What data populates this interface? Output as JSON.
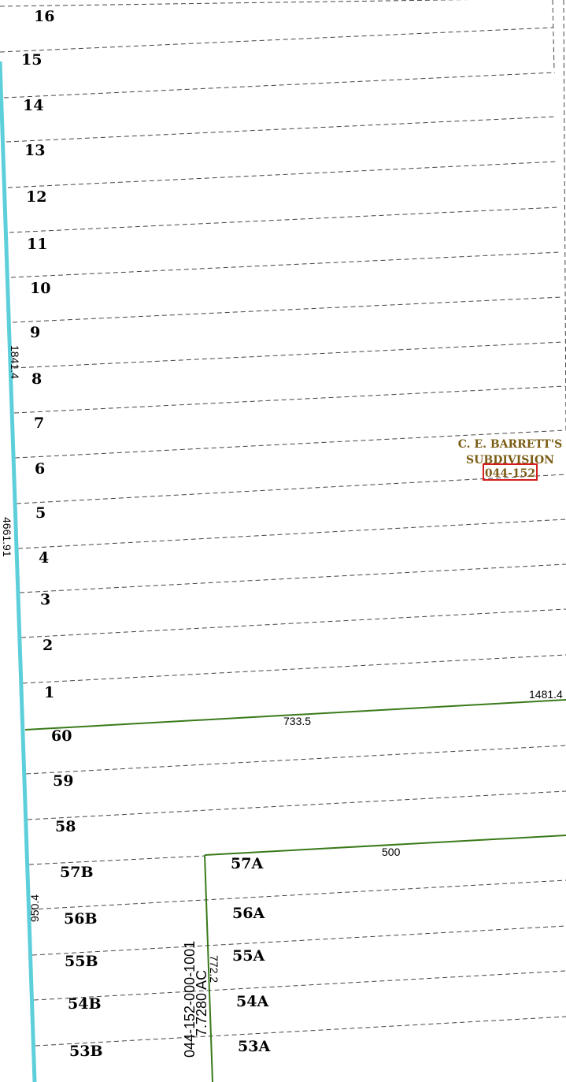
{
  "colors": {
    "road": "#5dcfdb",
    "parcel_line": "#3a7a1a",
    "lot_line": "#444444",
    "subdivision_label": "#7a5c14",
    "subdivision_box": "#d41f1f"
  },
  "subdivision": {
    "name_line1": "C. E. BARRETT'S",
    "name_line2": "SUBDIVISION",
    "code": "044-152"
  },
  "dimensions": {
    "upper_west": "1841.4",
    "road_length": "4661.91",
    "boundary_east": "1481.4",
    "boundary_middle": "733.5",
    "parcel_top": "500",
    "lower_west": "950.4",
    "parcel_west": "772.2"
  },
  "parcel": {
    "id": "044-152-000-1001",
    "area": "7.7280 AC"
  },
  "lots": [
    "16",
    "15",
    "14",
    "13",
    "12",
    "11",
    "10",
    "9",
    "8",
    "7",
    "6",
    "5",
    "4",
    "3",
    "2",
    "1",
    "60",
    "59",
    "58",
    "57B",
    "56B",
    "55B",
    "54B",
    "53B",
    "57A",
    "56A",
    "55A",
    "54A",
    "53A"
  ]
}
